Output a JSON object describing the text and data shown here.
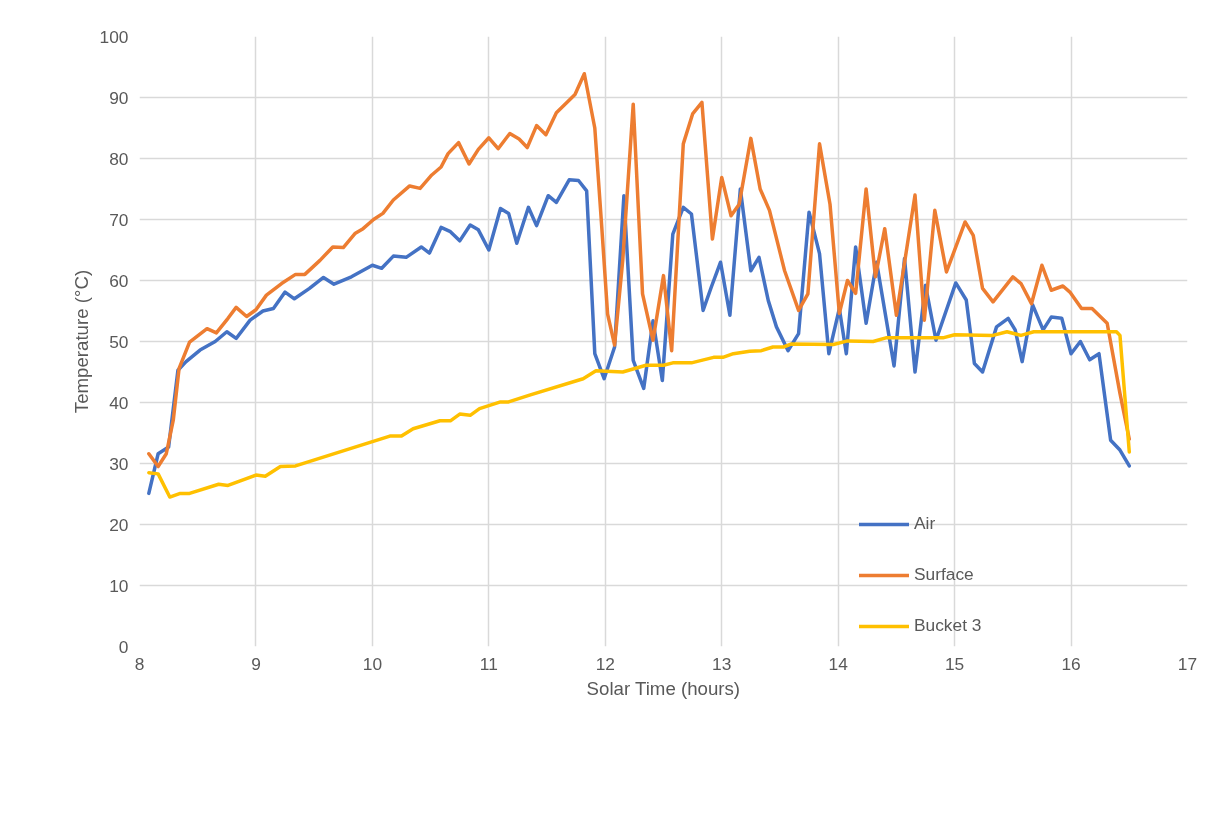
{
  "chart_data": {
    "type": "line",
    "xlabel": "Solar Time (hours)",
    "ylabel": "Temperature (°C)",
    "xlim": [
      8,
      17
    ],
    "xticks": [
      8,
      9,
      10,
      11,
      12,
      13,
      14,
      15,
      16,
      17
    ],
    "ylim": [
      0,
      100
    ],
    "yticks": [
      0,
      10,
      20,
      30,
      40,
      50,
      60,
      70,
      80,
      90,
      100
    ],
    "grid": true,
    "legend": "bottom right",
    "marker": "none",
    "line_style": "solid",
    "series": [
      {
        "name": "Air",
        "color": "#4472c4",
        "x": [
          8.08,
          8.16,
          8.25,
          8.33,
          8.4,
          8.52,
          8.65,
          8.75,
          8.83,
          8.95,
          9.06,
          9.15,
          9.25,
          9.33,
          9.46,
          9.58,
          9.67,
          9.82,
          10.0,
          10.08,
          10.18,
          10.29,
          10.42,
          10.49,
          10.59,
          10.67,
          10.75,
          10.84,
          10.91,
          11.0,
          11.1,
          11.17,
          11.24,
          11.34,
          11.41,
          11.51,
          11.58,
          11.69,
          11.77,
          11.84,
          11.87,
          11.91,
          11.99,
          12.08,
          12.16,
          12.24,
          12.33,
          12.41,
          12.49,
          12.58,
          12.67,
          12.74,
          12.84,
          12.91,
          12.99,
          13.07,
          13.16,
          13.25,
          13.32,
          13.4,
          13.47,
          13.57,
          13.66,
          13.75,
          13.84,
          13.92,
          14.01,
          14.07,
          14.15,
          14.24,
          14.33,
          14.48,
          14.57,
          14.66,
          14.75,
          14.84,
          15.01,
          15.1,
          15.17,
          15.24,
          15.36,
          15.46,
          15.52,
          15.58,
          15.67,
          15.76,
          15.83,
          15.92,
          16.0,
          16.08,
          16.16,
          16.24,
          16.34,
          16.42,
          16.5
        ],
        "values": [
          25.1,
          31.6,
          32.7,
          45.3,
          46.7,
          48.6,
          50,
          51.6,
          50.5,
          53.5,
          55,
          55.4,
          58.1,
          57,
          58.7,
          60.5,
          59.4,
          60.6,
          62.5,
          62,
          64,
          63.8,
          65.5,
          64.5,
          68.7,
          68,
          66.5,
          69.1,
          68.3,
          65,
          71.8,
          71,
          66.1,
          72,
          69,
          73.9,
          72.8,
          76.5,
          76.4,
          74.7,
          63.3,
          48,
          43.9,
          49.1,
          73.9,
          46.9,
          42.3,
          53.4,
          43.6,
          67.6,
          72,
          70.9,
          55.1,
          58.9,
          63,
          54.3,
          75,
          61.6,
          63.8,
          56.7,
          52.4,
          48.5,
          51.3,
          71.2,
          64.4,
          48,
          55.4,
          48,
          65.5,
          53,
          63,
          46,
          63.6,
          45,
          59.2,
          50.2,
          59.6,
          56.8,
          46.4,
          45,
          52.4,
          53.8,
          51.9,
          46.7,
          56,
          51.9,
          54,
          53.8,
          48,
          50,
          47,
          48,
          33.8,
          32.2,
          29.6
        ]
      },
      {
        "name": "Surface",
        "color": "#ed7d31",
        "x": [
          8.08,
          8.16,
          8.23,
          8.29,
          8.34,
          8.43,
          8.58,
          8.66,
          8.76,
          8.83,
          8.92,
          9.0,
          9.09,
          9.22,
          9.34,
          9.42,
          9.55,
          9.66,
          9.75,
          9.85,
          9.92,
          10.01,
          10.09,
          10.18,
          10.32,
          10.41,
          10.51,
          10.59,
          10.65,
          10.74,
          10.83,
          10.91,
          11.0,
          11.08,
          11.18,
          11.26,
          11.33,
          11.41,
          11.49,
          11.58,
          11.74,
          11.82,
          11.91,
          11.97,
          12.02,
          12.08,
          12.15,
          12.24,
          12.32,
          12.41,
          12.5,
          12.57,
          12.67,
          12.75,
          12.83,
          12.92,
          13.0,
          13.08,
          13.15,
          13.25,
          13.33,
          13.41,
          13.54,
          13.66,
          13.74,
          13.84,
          13.93,
          14.01,
          14.08,
          14.15,
          14.24,
          14.32,
          14.4,
          14.5,
          14.66,
          14.74,
          14.83,
          14.93,
          15.09,
          15.16,
          15.24,
          15.33,
          15.5,
          15.57,
          15.66,
          15.75,
          15.83,
          15.93,
          15.99,
          16.09,
          16.18,
          16.31,
          16.42,
          16.5
        ],
        "values": [
          31.6,
          29.5,
          31.6,
          37.1,
          45.6,
          49.9,
          52.1,
          51.4,
          53.8,
          55.6,
          54.1,
          55.2,
          57.6,
          59.5,
          61,
          61,
          63.3,
          65.5,
          65.4,
          67.7,
          68.5,
          70,
          71,
          73.2,
          75.5,
          75.1,
          77.3,
          78.6,
          80.8,
          82.6,
          79.1,
          81.5,
          83.4,
          81.6,
          84.1,
          83.2,
          81.8,
          85.4,
          83.9,
          87.5,
          90.5,
          93.9,
          85,
          68.7,
          54.5,
          49.4,
          63.3,
          88.9,
          57.8,
          50.2,
          60.8,
          48.5,
          82.4,
          87.3,
          89.2,
          66.8,
          76.9,
          70.6,
          72.5,
          83.3,
          75,
          71.5,
          61.6,
          55.1,
          57.8,
          82.4,
          72.5,
          54.6,
          60,
          57.9,
          75,
          60.6,
          68.5,
          54.3,
          74,
          53.5,
          71.5,
          61.4,
          69.6,
          67.4,
          58.7,
          56.5,
          60.6,
          59.5,
          56.2,
          62.5,
          58.4,
          59.1,
          58.1,
          55.4,
          55.4,
          53,
          41.5,
          34
        ]
      },
      {
        "name": "Bucket 3",
        "color": "#ffc000",
        "x": [
          8.08,
          8.16,
          8.26,
          8.35,
          8.43,
          8.68,
          8.76,
          9.0,
          9.08,
          9.21,
          9.34,
          10.15,
          10.25,
          10.35,
          10.58,
          10.67,
          10.75,
          10.84,
          10.92,
          11.1,
          11.17,
          11.35,
          11.81,
          11.92,
          12.15,
          12.35,
          12.5,
          12.58,
          12.74,
          12.93,
          13.01,
          13.1,
          13.24,
          13.34,
          13.44,
          13.53,
          13.6,
          13.96,
          14.08,
          14.3,
          14.41,
          14.9,
          15.0,
          15.33,
          15.45,
          15.57,
          15.68,
          16.39,
          16.42,
          16.5
        ],
        "values": [
          28.5,
          28.3,
          24.5,
          25.1,
          25.1,
          26.6,
          26.4,
          28.1,
          27.9,
          29.5,
          29.6,
          34.5,
          34.5,
          35.7,
          37,
          37,
          38.1,
          37.9,
          39,
          40.1,
          40.1,
          41.2,
          43.9,
          45.2,
          45,
          46.1,
          46.1,
          46.5,
          46.5,
          47.4,
          47.4,
          48,
          48.4,
          48.5,
          49.1,
          49.1,
          49.6,
          49.5,
          50.1,
          50,
          50.6,
          50.6,
          51.1,
          51,
          51.6,
          51,
          51.6,
          51.6,
          51,
          31.9
        ]
      }
    ]
  }
}
